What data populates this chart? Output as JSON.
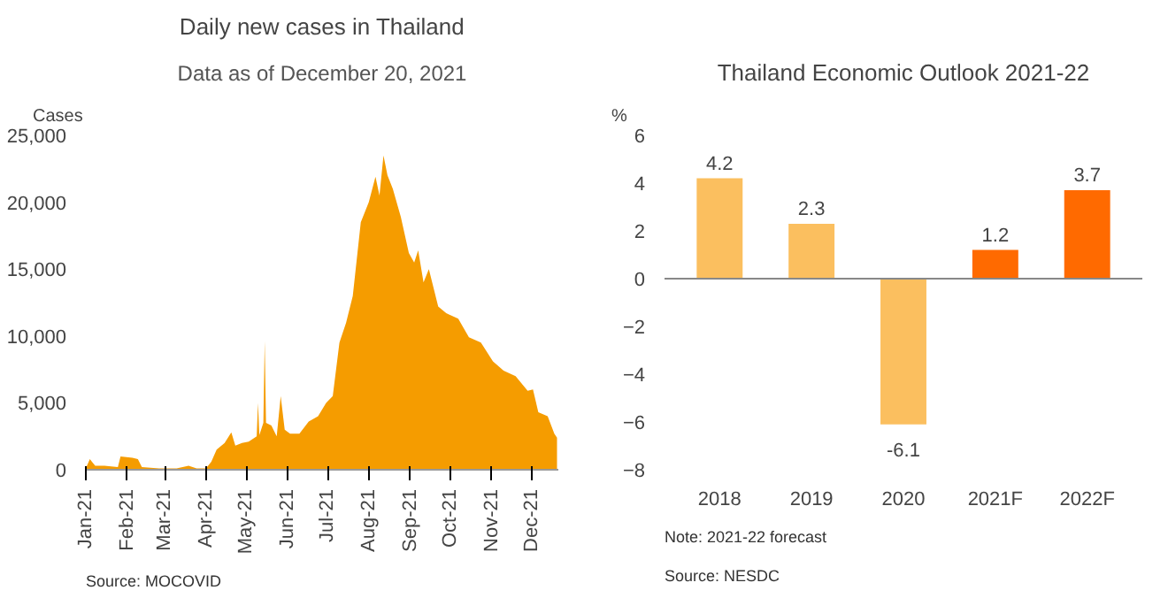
{
  "chart_data": [
    {
      "type": "area",
      "title": "Daily new cases in Thailand",
      "subtitle": "Data as of December 20, 2021",
      "ylabel": "Cases",
      "annotations": [
        "Source: MOCOVID"
      ],
      "color": "#f59c00",
      "x": [
        "2021-01-01",
        "2021-01-04",
        "2021-01-08",
        "2021-01-15",
        "2021-01-25",
        "2021-01-27",
        "2021-02-05",
        "2021-02-09",
        "2021-02-12",
        "2021-02-25",
        "2021-03-10",
        "2021-03-19",
        "2021-03-25",
        "2021-04-01",
        "2021-04-05",
        "2021-04-09",
        "2021-04-15",
        "2021-04-20",
        "2021-04-23",
        "2021-04-28",
        "2021-05-03",
        "2021-05-09",
        "2021-05-10",
        "2021-05-11",
        "2021-05-14",
        "2021-05-15",
        "2021-05-16",
        "2021-05-20",
        "2021-05-24",
        "2021-05-27",
        "2021-05-30",
        "2021-06-03",
        "2021-06-10",
        "2021-06-17",
        "2021-06-24",
        "2021-06-30",
        "2021-07-05",
        "2021-07-10",
        "2021-07-15",
        "2021-07-20",
        "2021-07-26",
        "2021-08-01",
        "2021-08-06",
        "2021-08-09",
        "2021-08-12",
        "2021-08-15",
        "2021-08-19",
        "2021-08-25",
        "2021-08-31",
        "2021-09-04",
        "2021-09-07",
        "2021-09-11",
        "2021-09-15",
        "2021-09-22",
        "2021-09-28",
        "2021-10-07",
        "2021-10-15",
        "2021-10-24",
        "2021-11-02",
        "2021-11-10",
        "2021-11-19",
        "2021-11-28",
        "2021-12-02",
        "2021-12-06",
        "2021-12-13",
        "2021-12-18",
        "2021-12-20"
      ],
      "values": [
        100,
        800,
        300,
        300,
        200,
        1000,
        900,
        800,
        200,
        100,
        100,
        300,
        100,
        100,
        600,
        1500,
        2000,
        2800,
        1800,
        2000,
        2100,
        2500,
        5000,
        2600,
        3500,
        9600,
        3500,
        3300,
        2500,
        5500,
        3000,
        2700,
        2700,
        3600,
        4000,
        5000,
        5500,
        9500,
        11000,
        13000,
        18500,
        20000,
        21900,
        20500,
        23500,
        22000,
        21000,
        18900,
        16200,
        15500,
        16400,
        14000,
        15000,
        12200,
        11700,
        11300,
        9900,
        9500,
        8100,
        7400,
        7000,
        5900,
        6000,
        4300,
        4000,
        2700,
        2400
      ],
      "xlim": [
        "2021-01-01",
        "2021-12-21"
      ],
      "xticks": [
        {
          "value": "2021-01-01",
          "label": "Jan-21"
        },
        {
          "value": "2021-02-01",
          "label": "Feb-21"
        },
        {
          "value": "2021-03-01",
          "label": "Mar-21"
        },
        {
          "value": "2021-04-01",
          "label": "Apr-21"
        },
        {
          "value": "2021-05-01",
          "label": "May-21"
        },
        {
          "value": "2021-06-01",
          "label": "Jun-21"
        },
        {
          "value": "2021-07-01",
          "label": "Jul-21"
        },
        {
          "value": "2021-08-01",
          "label": "Aug-21"
        },
        {
          "value": "2021-09-01",
          "label": "Sep-21"
        },
        {
          "value": "2021-10-01",
          "label": "Oct-21"
        },
        {
          "value": "2021-11-01",
          "label": "Nov-21"
        },
        {
          "value": "2021-12-01",
          "label": "Dec-21"
        }
      ],
      "ylim": [
        0,
        25000
      ],
      "yticks": [
        {
          "value": 0,
          "label": "0"
        },
        {
          "value": 5000,
          "label": "5,000"
        },
        {
          "value": 10000,
          "label": "10,000"
        },
        {
          "value": 15000,
          "label": "15,000"
        },
        {
          "value": 20000,
          "label": "20,000"
        },
        {
          "value": 25000,
          "label": "25,000"
        }
      ]
    },
    {
      "type": "bar",
      "title": "Thailand Economic Outlook 2021-22",
      "ylabel": "%",
      "annotations": [
        "Note: 2021-22 forecast",
        "Source: NESDC"
      ],
      "data_labels": true,
      "categories": [
        "2018",
        "2019",
        "2020",
        "2021F",
        "2022F"
      ],
      "values": [
        4.2,
        2.3,
        -6.1,
        1.2,
        3.7
      ],
      "colors": [
        "#fbbf5f",
        "#fbbf5f",
        "#fbbf5f",
        "#ff6a00",
        "#ff6a00"
      ],
      "ylim": [
        -8,
        6
      ],
      "yticks": [
        -8,
        -6,
        -4,
        -2,
        0,
        2,
        4,
        6
      ]
    }
  ]
}
